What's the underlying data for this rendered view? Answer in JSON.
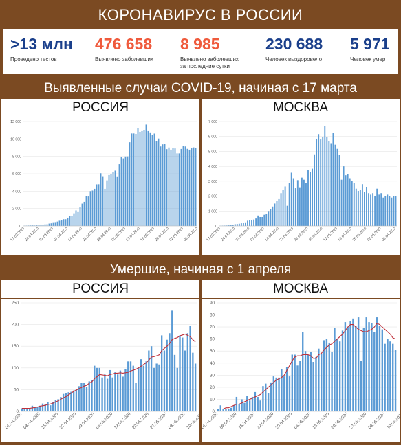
{
  "header": {
    "title": "КОРОНАВИРУС В РОССИИ"
  },
  "stats": [
    {
      "value": ">13 млн",
      "label": "Проведено тестов",
      "color": "#1a3f8b"
    },
    {
      "value": "476 658",
      "label": "Выявлено заболевших",
      "color": "#ef5a3c"
    },
    {
      "value": "8 985",
      "label": "Выявлено заболевших\nза последние сутки",
      "color": "#ef5a3c"
    },
    {
      "value": "230 688",
      "label": "Человек выздоровело",
      "color": "#1a3f8b"
    },
    {
      "value": "5 971",
      "label": "Человек умер",
      "color": "#1a3f8b"
    }
  ],
  "section1": {
    "title": "Выявленные случаи COVID-19, начиная с 17 марта",
    "left": "РОССИЯ",
    "right": "МОСКВА"
  },
  "section2": {
    "title": "Умершие, начиная с 1 апреля",
    "left": "РОССИЯ",
    "right": "МОСКВА"
  },
  "colors": {
    "bar": "#5b9bd5",
    "trend": "#c0303a",
    "background": "#7b4a22"
  },
  "chart_data": [
    {
      "type": "bar",
      "ylim": [
        0,
        12000
      ],
      "yticks": [
        0,
        2000,
        4000,
        6000,
        8000,
        10000,
        12000
      ],
      "ytick_labels": [
        "0",
        "2 000",
        "4 000",
        "6 000",
        "8 000",
        "10 000",
        "12 000"
      ],
      "xtick_labels": [
        "17.03.2020",
        "24.03.2020",
        "31.03.2020",
        "07.04.2020",
        "14.04.2020",
        "21.04.2020",
        "28.04.2020",
        "05.05.2020",
        "12.05.2020",
        "19.05.2020",
        "26.05.2020",
        "02.06.2020",
        "09.06.2020"
      ],
      "values": [
        21,
        36,
        46,
        54,
        60,
        48,
        66,
        80,
        160,
        160,
        182,
        196,
        270,
        300,
        420,
        440,
        500,
        600,
        650,
        770,
        770,
        950,
        1160,
        1150,
        1450,
        1780,
        1670,
        2190,
        2560,
        2770,
        3400,
        3390,
        4000,
        4070,
        4270,
        4780,
        4790,
        6060,
        5640,
        4270,
        5240,
        5850,
        5970,
        6160,
        6360,
        5620,
        7100,
        7930,
        7770,
        7990,
        8000,
        9620,
        10630,
        10630,
        10580,
        11230,
        10820,
        10900,
        11010,
        11650,
        10900,
        10750,
        10490,
        10620,
        9730,
        10050,
        9140,
        9380,
        9460,
        8830,
        9020,
        8770,
        8940,
        8910,
        8340,
        8340,
        8850,
        9200,
        9140,
        8860,
        8770,
        8920,
        9030,
        8960
      ]
    },
    {
      "type": "bar",
      "ylim": [
        0,
        7000
      ],
      "yticks": [
        0,
        1000,
        2000,
        3000,
        4000,
        5000,
        6000,
        7000
      ],
      "ytick_labels": [
        "0",
        "1 000",
        "2 000",
        "3 000",
        "4 000",
        "5 000",
        "6 000",
        "7 000"
      ],
      "xtick_labels": [
        "17.03.2020",
        "24.03.2020",
        "31.03.2020",
        "07.04.2020",
        "14.04.2020",
        "21.04.2020",
        "28.04.2020",
        "05.05.2020",
        "12.05.2020",
        "19.05.2020",
        "26.05.2020",
        "02.06.2020",
        "09.06.2020"
      ],
      "values": [
        10,
        20,
        25,
        30,
        40,
        50,
        60,
        120,
        130,
        150,
        180,
        200,
        240,
        350,
        380,
        400,
        430,
        500,
        700,
        600,
        600,
        750,
        800,
        1000,
        1150,
        1300,
        1500,
        1700,
        1800,
        2200,
        2400,
        2650,
        1350,
        2900,
        3570,
        3200,
        2530,
        3070,
        2550,
        3240,
        3100,
        2860,
        3730,
        3600,
        3840,
        4800,
        5850,
        6160,
        5800,
        5950,
        6700,
        5950,
        5700,
        5550,
        6230,
        5450,
        5170,
        4760,
        3100,
        4000,
        3400,
        3500,
        3200,
        3000,
        2900,
        2500,
        2350,
        2400,
        2800,
        2300,
        2600,
        2200,
        2100,
        2200,
        2000,
        2500,
        2100,
        2200,
        1900,
        2000,
        2100,
        2000,
        1900,
        2000,
        2000
      ]
    },
    {
      "type": "bar",
      "ylim": [
        0,
        250
      ],
      "yticks": [
        0,
        50,
        100,
        150,
        200,
        250
      ],
      "ytick_labels": [
        "0",
        "50",
        "100",
        "150",
        "200",
        "250"
      ],
      "xtick_labels": [
        "01.04.2020",
        "08.04.2020",
        "15.04.2020",
        "22.04.2020",
        "29.04.2020",
        "06.05.2020",
        "13.05.2020",
        "20.05.2020",
        "27.05.2020",
        "03.06.2020",
        "10.06.2020"
      ],
      "values": [
        7,
        7,
        6,
        6,
        13,
        9,
        11,
        13,
        18,
        16,
        22,
        14,
        21,
        26,
        28,
        33,
        40,
        42,
        44,
        45,
        48,
        50,
        58,
        65,
        66,
        56,
        69,
        72,
        105,
        100,
        100,
        78,
        85,
        75,
        95,
        78,
        90,
        85,
        94,
        80,
        98,
        115,
        115,
        105,
        65,
        100,
        120,
        105,
        115,
        140,
        150,
        100,
        110,
        108,
        175,
        140,
        165,
        180,
        232,
        130,
        100,
        175,
        170,
        140,
        180,
        197,
        135,
        110
      ],
      "trend": [
        7,
        7,
        7,
        7,
        8,
        9,
        10,
        12,
        13,
        14,
        16,
        17,
        19,
        22,
        24,
        28,
        31,
        34,
        38,
        42,
        46,
        49,
        52,
        55,
        58,
        60,
        65,
        68,
        75,
        80,
        85,
        84,
        83,
        82,
        85,
        86,
        88,
        88,
        89,
        88,
        89,
        90,
        93,
        95,
        97,
        100,
        104,
        108,
        112,
        118,
        125,
        126,
        128,
        130,
        140,
        145,
        150,
        156,
        165,
        168,
        170,
        174,
        176,
        178,
        175,
        172,
        165,
        160
      ]
    },
    {
      "type": "bar",
      "ylim": [
        0,
        90
      ],
      "yticks": [
        0,
        10,
        20,
        30,
        40,
        50,
        60,
        70,
        80,
        90
      ],
      "ytick_labels": [
        "0",
        "10",
        "20",
        "30",
        "40",
        "50",
        "60",
        "70",
        "80",
        "90"
      ],
      "xtick_labels": [
        "01.04.2020",
        "08.04.2020",
        "15.04.2020",
        "22.04.2020",
        "29.04.2020",
        "06.05.2020",
        "13.05.2020",
        "20.05.2020",
        "27.05.2020",
        "03.06.2020",
        "10.06.2020"
      ],
      "values": [
        2,
        5,
        2,
        2,
        2,
        3,
        5,
        12,
        6,
        10,
        7,
        13,
        9,
        12,
        16,
        12,
        9,
        21,
        23,
        15,
        24,
        29,
        28,
        28,
        35,
        29,
        37,
        29,
        47,
        47,
        38,
        42,
        66,
        50,
        47,
        49,
        41,
        45,
        52,
        48,
        59,
        60,
        57,
        49,
        69,
        60,
        58,
        67,
        74,
        70,
        75,
        77,
        71,
        78,
        42,
        69,
        78,
        74,
        73,
        66,
        78,
        71,
        68,
        56,
        60,
        58,
        56,
        51
      ],
      "trend": [
        2,
        2,
        2,
        3,
        3,
        4,
        5,
        6,
        6,
        7,
        8,
        9,
        10,
        11,
        12,
        13,
        14,
        16,
        18,
        20,
        22,
        24,
        26,
        27,
        28,
        30,
        34,
        38,
        42,
        45,
        46,
        46,
        47,
        47,
        47,
        46,
        44,
        44,
        47,
        48,
        51,
        53,
        55,
        56,
        58,
        60,
        62,
        64,
        67,
        70,
        72,
        72,
        70,
        68,
        67,
        66,
        66,
        67,
        68,
        70,
        73,
        72,
        70,
        68,
        66,
        64,
        61,
        60
      ]
    }
  ]
}
